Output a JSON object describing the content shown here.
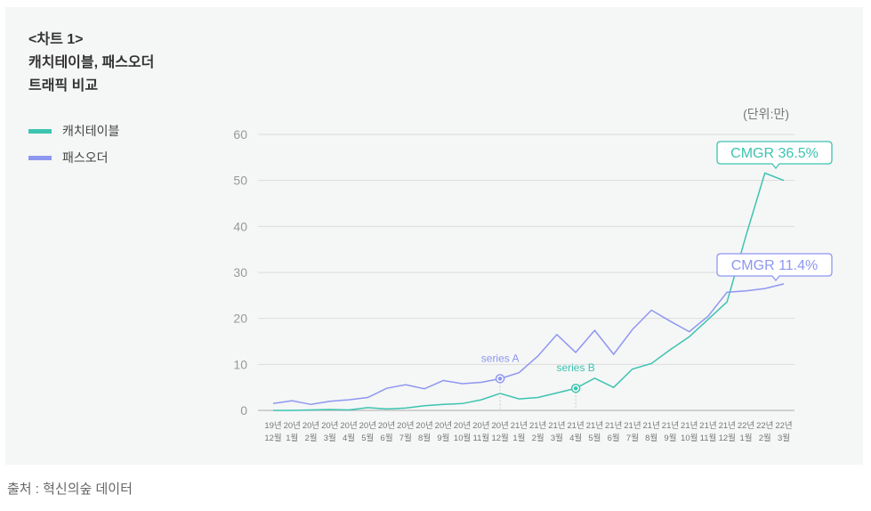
{
  "title_lines": [
    "<차트 1>",
    "캐치테이블, 패스오더",
    "트래픽 비교"
  ],
  "source": "출처 : 혁신의숲 데이터",
  "chart_data": {
    "type": "line",
    "unit_label": "(단위:만)",
    "ylim": [
      0,
      60
    ],
    "yticks": [
      0,
      10,
      20,
      30,
      40,
      50,
      60
    ],
    "grid": true,
    "legend_placement": "left",
    "categories": [
      [
        "19년",
        "12월"
      ],
      [
        "20년",
        "1월"
      ],
      [
        "20년",
        "2월"
      ],
      [
        "20년",
        "3월"
      ],
      [
        "20년",
        "4월"
      ],
      [
        "20년",
        "5월"
      ],
      [
        "20년",
        "6월"
      ],
      [
        "20년",
        "7월"
      ],
      [
        "20년",
        "8월"
      ],
      [
        "20년",
        "9월"
      ],
      [
        "20년",
        "10월"
      ],
      [
        "20년",
        "11월"
      ],
      [
        "20년",
        "12월"
      ],
      [
        "21년",
        "1월"
      ],
      [
        "21년",
        "2월"
      ],
      [
        "21년",
        "3월"
      ],
      [
        "21년",
        "4월"
      ],
      [
        "21년",
        "5월"
      ],
      [
        "21년",
        "6월"
      ],
      [
        "21년",
        "7월"
      ],
      [
        "21년",
        "8월"
      ],
      [
        "21년",
        "9월"
      ],
      [
        "21년",
        "10월"
      ],
      [
        "21년",
        "11월"
      ],
      [
        "21년",
        "12월"
      ],
      [
        "22년",
        "1월"
      ],
      [
        "22년",
        "2월"
      ],
      [
        "22년",
        "3월"
      ]
    ],
    "series": [
      {
        "name": "캐치테이블",
        "color": "#3cc4b0",
        "values": [
          0,
          0,
          0.1,
          0.2,
          0.1,
          0.6,
          0.3,
          0.5,
          1.0,
          1.3,
          1.5,
          2.3,
          3.7,
          2.5,
          2.8,
          3.8,
          4.8,
          7.0,
          5.0,
          9.0,
          10.2,
          13.2,
          16.0,
          19.8,
          23.6,
          38,
          51.6,
          50
        ],
        "marker": {
          "index": 16,
          "label": "series B"
        },
        "callout": "CMGR 36.5%"
      },
      {
        "name": "패스오더",
        "color": "#8e97f0",
        "values": [
          1.5,
          2.1,
          1.3,
          2.0,
          2.3,
          2.8,
          4.8,
          5.6,
          4.7,
          6.5,
          5.8,
          6.1,
          6.9,
          8.2,
          11.8,
          16.5,
          12.6,
          17.4,
          12.2,
          17.6,
          21.8,
          19.4,
          17.1,
          20.5,
          25.7,
          26.0,
          26.5,
          27.5
        ],
        "marker": {
          "index": 12,
          "label": "series A"
        },
        "callout": "CMGR 11.4%"
      }
    ]
  }
}
